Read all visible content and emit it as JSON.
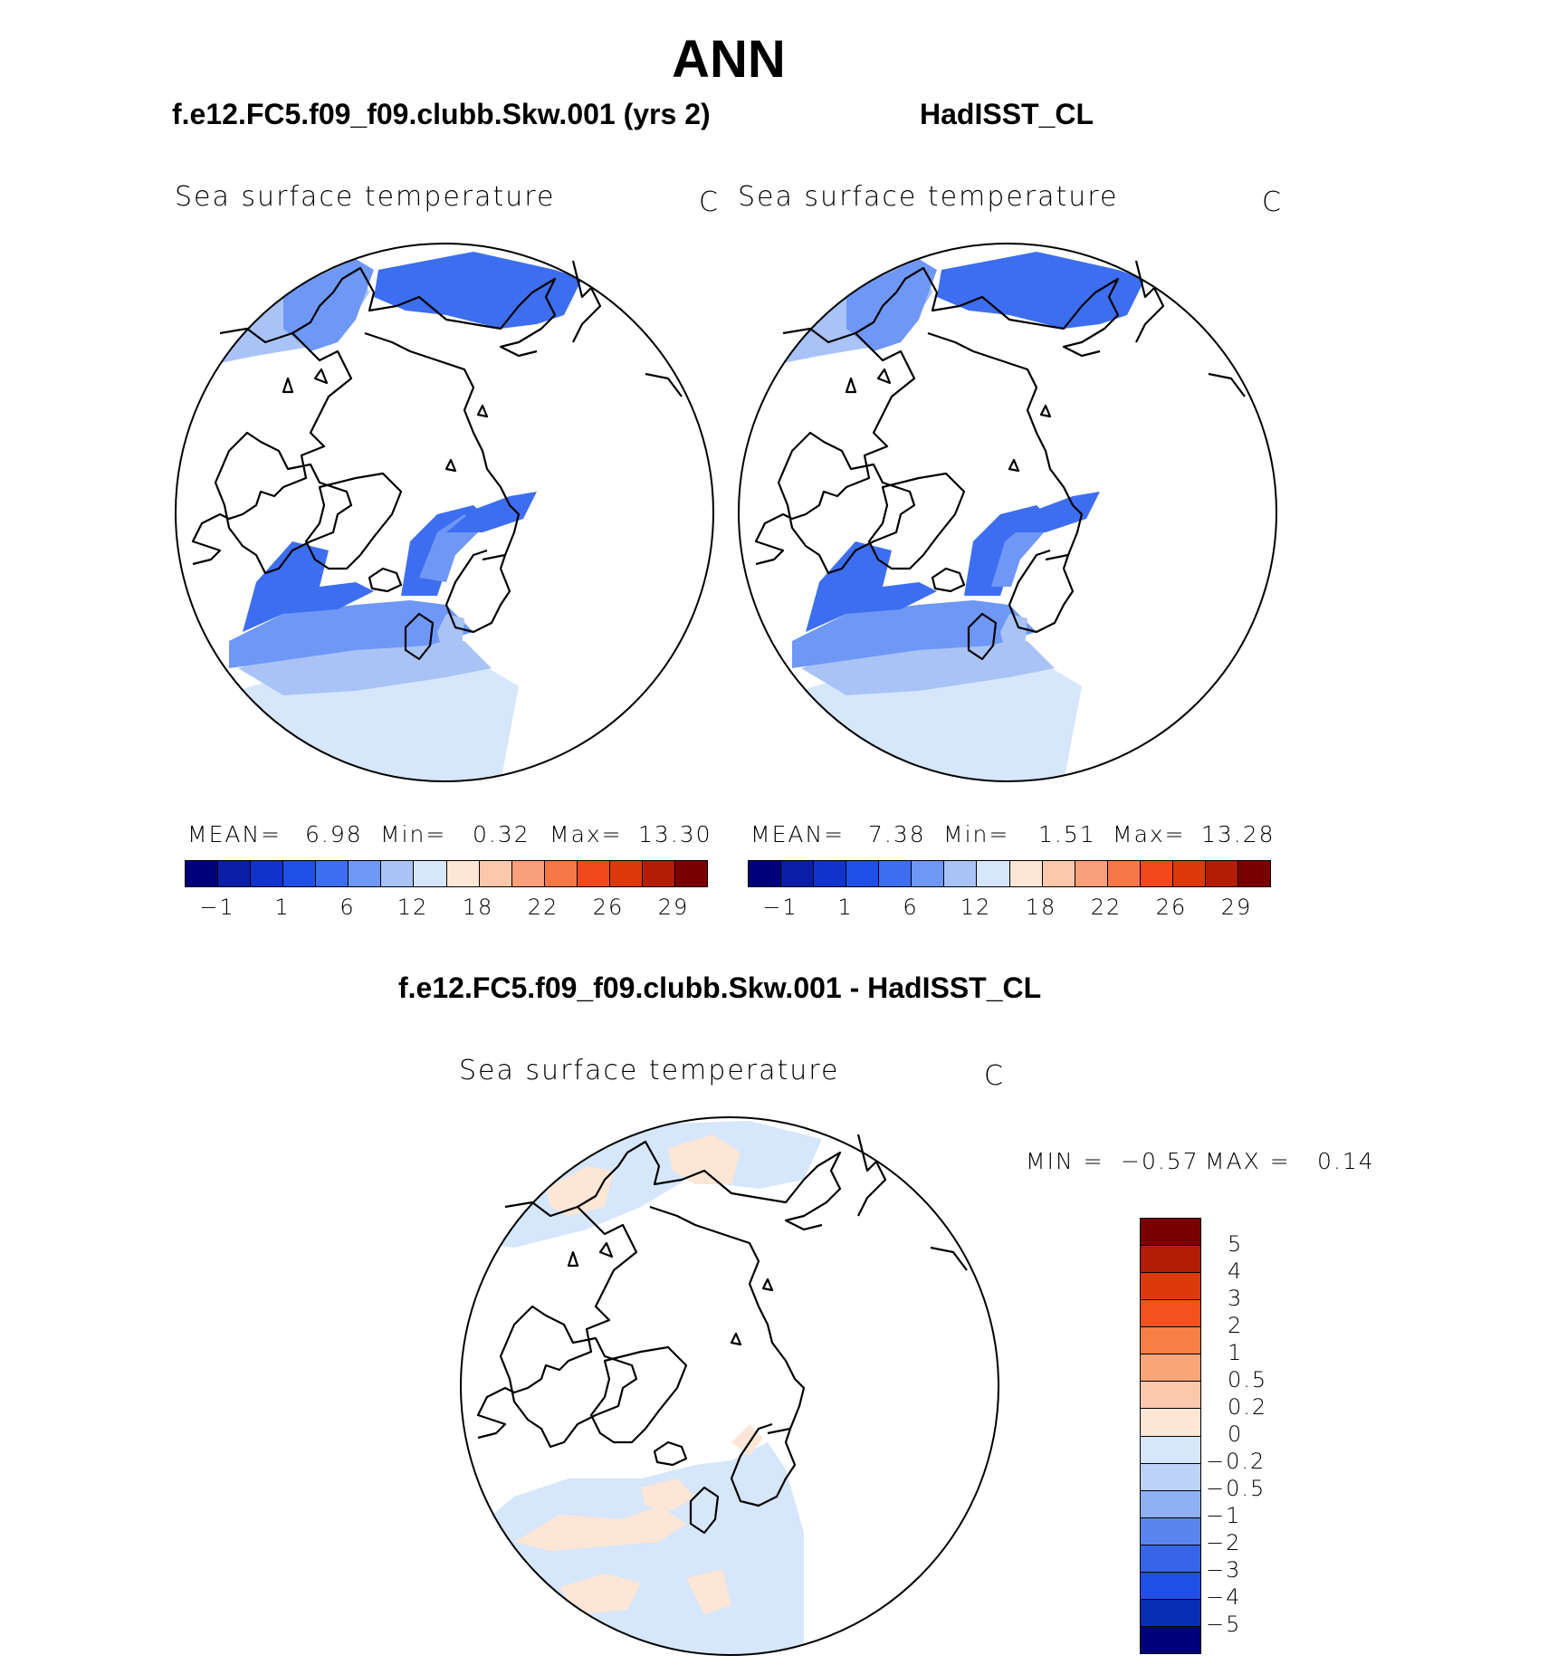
{
  "season": "ANN",
  "panels": [
    {
      "case_title": "f.e12.FC5.f09_f09.clubb.Skw.001 (yrs 2)",
      "var_label": "Sea surface temperature",
      "units": "C",
      "stats": {
        "mean_label": "MEAN=",
        "mean": "6.98",
        "min_label": "Min=",
        "min": "0.32",
        "max_label": "Max=",
        "max": "13.30"
      }
    },
    {
      "case_title": "HadISST_CL",
      "var_label": "Sea surface temperature",
      "units": "C",
      "stats": {
        "mean_label": "MEAN=",
        "mean": "7.38",
        "min_label": "Min=",
        "min": "1.51",
        "max_label": "Max=",
        "max": "13.28"
      }
    }
  ],
  "diff": {
    "title": "f.e12.FC5.f09_f09.clubb.Skw.001 - HadISST_CL",
    "var_label": "Sea surface temperature",
    "units": "C",
    "stats": {
      "min_label": "MIN =",
      "min": "−0.57",
      "max_label": "MAX =",
      "max": "0.14"
    }
  },
  "colorbar": {
    "colors": [
      "#00007a",
      "#0a1fa6",
      "#1133cc",
      "#1f4fe6",
      "#3d6ef0",
      "#6f97f5",
      "#a9c3f7",
      "#d6e6fb",
      "#fde6d6",
      "#fbc8ad",
      "#f99f7a",
      "#f77847",
      "#f04a1c",
      "#dc3a0a",
      "#b31d08",
      "#7a0000"
    ],
    "ticks": [
      "−1",
      "1",
      "6",
      "12",
      "18",
      "22",
      "26",
      "29"
    ]
  },
  "diff_colorbar": {
    "colors": [
      "#7a0000",
      "#b31d08",
      "#dc3a0a",
      "#f4511e",
      "#f78047",
      "#f9a57a",
      "#fbc8ad",
      "#fde6d6",
      "#d6e6fb",
      "#bcd2f7",
      "#8fb0f3",
      "#5a85ee",
      "#3665e8",
      "#1f4fe6",
      "#0a2eb3",
      "#00007a"
    ],
    "ticks": [
      "5",
      "4",
      "3",
      "2",
      "1",
      "0.5",
      "0.2",
      "0",
      "−0.2",
      "−0.5",
      "−1",
      "−2",
      "−3",
      "−4",
      "−5"
    ]
  }
}
